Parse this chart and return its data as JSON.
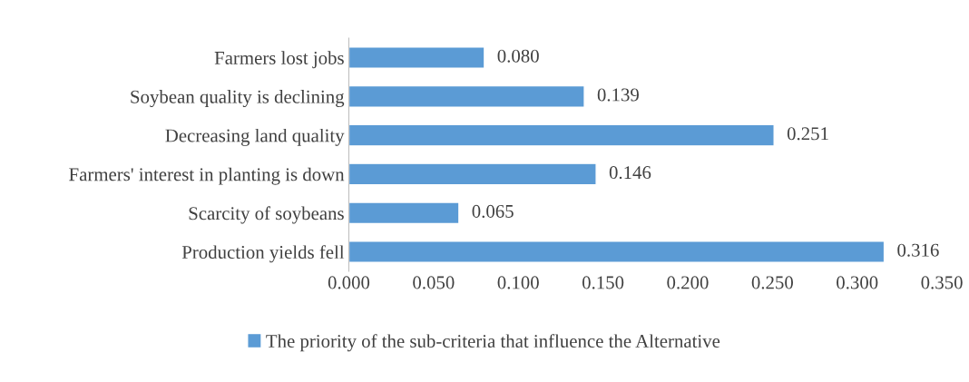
{
  "chart_data": {
    "type": "bar",
    "orientation": "horizontal",
    "categories": [
      "Farmers lost jobs",
      "Soybean quality is declining",
      "Decreasing land quality",
      "Farmers' interest in planting is down",
      "Scarcity of soybeans",
      "Production yields fell"
    ],
    "series": [
      {
        "name": "The priority of the sub-criteria that influence the Alternative",
        "color": "#5b9bd5",
        "values": [
          0.08,
          0.139,
          0.251,
          0.146,
          0.065,
          0.316
        ],
        "value_labels": [
          "0.080",
          "0.139",
          "0.251",
          "0.146",
          "0.065",
          "0.316"
        ]
      }
    ],
    "xlim": [
      0,
      0.35
    ],
    "xticks": [
      {
        "value": 0,
        "label": "0.000"
      },
      {
        "value": 0.05,
        "label": "0.050"
      },
      {
        "value": 0.1,
        "label": "0.100"
      },
      {
        "value": 0.15,
        "label": "0.150"
      },
      {
        "value": 0.2,
        "label": "0.200"
      },
      {
        "value": 0.25,
        "label": "0.250"
      },
      {
        "value": 0.3,
        "label": "0.300"
      },
      {
        "value": 0.35,
        "label": "0.350"
      }
    ],
    "grid": false,
    "legend": "bottom"
  }
}
